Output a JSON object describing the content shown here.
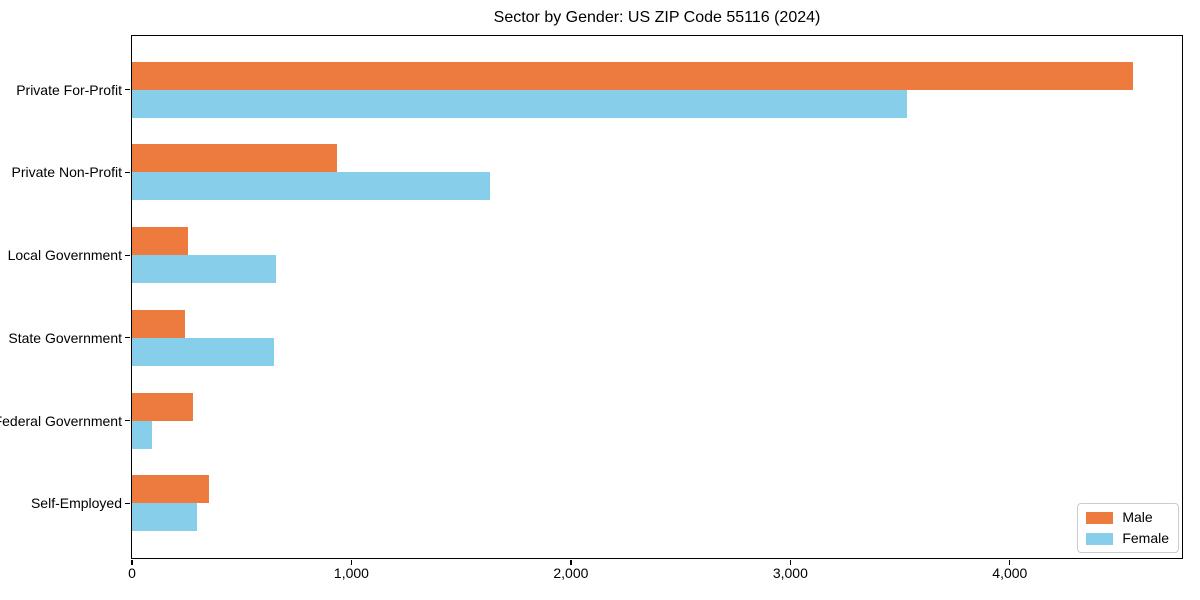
{
  "title": "Sector by Gender: US ZIP Code 55116 (2024)",
  "chart_data": {
    "type": "bar",
    "orientation": "horizontal",
    "title": "Sector by Gender: US ZIP Code 55116 (2024)",
    "xlabel": "",
    "ylabel": "",
    "categories": [
      "Private For-Profit",
      "Private Non-Profit",
      "Local Government",
      "State Government",
      "Federal Government",
      "Self-Employed"
    ],
    "series": [
      {
        "name": "Male",
        "color": "#ec7b3d",
        "values": [
          4560,
          935,
          255,
          240,
          280,
          350
        ]
      },
      {
        "name": "Female",
        "color": "#87ceeb",
        "values": [
          3530,
          1630,
          655,
          645,
          90,
          295
        ]
      }
    ],
    "xlim": [
      0,
      4780
    ],
    "xticks": [
      {
        "value": 0,
        "label": "0"
      },
      {
        "value": 1000,
        "label": "1,000"
      },
      {
        "value": 2000,
        "label": "2,000"
      },
      {
        "value": 3000,
        "label": "3,000"
      },
      {
        "value": 4000,
        "label": "4,000"
      }
    ],
    "grid": false,
    "legend": {
      "position": "lower right"
    }
  }
}
